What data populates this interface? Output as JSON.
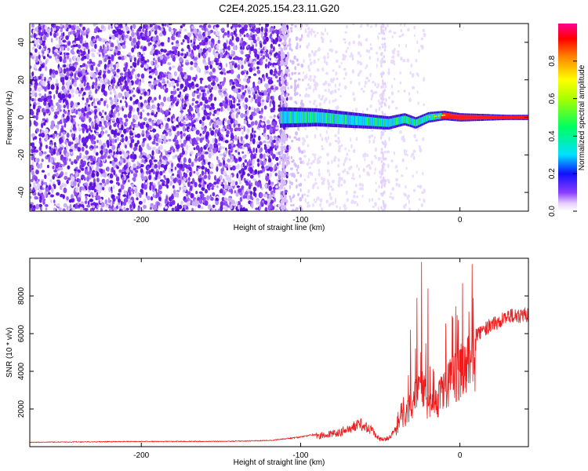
{
  "title": "C2E4.2025.154.23.11.G20",
  "colors": {
    "snr_line": "#ee1c1c",
    "spectrogram_noise": "#6a1aea",
    "background": "#ffffff"
  },
  "chart_data": [
    {
      "type": "heatmap",
      "name": "spectrogram",
      "xlabel": "Height of straight line (km)",
      "ylabel": "Frequency (Hz)",
      "xlim": [
        -270,
        43
      ],
      "ylim": [
        -50,
        50
      ],
      "x_ticks": [
        -200,
        -100,
        0
      ],
      "y_ticks": [
        -40,
        -20,
        0,
        20,
        40
      ],
      "colorbar": {
        "label": "Normalized spectral amplitude",
        "range": [
          0.0,
          1.0
        ],
        "ticks": [
          0.0,
          0.2,
          0.4,
          0.6,
          0.8
        ]
      },
      "signal_band": {
        "description": "strong narrow band near 0 Hz",
        "start_x": -113,
        "end_x": 43,
        "center_freq": [
          {
            "x": -113,
            "f": 0
          },
          {
            "x": -90,
            "f": 0
          },
          {
            "x": -60,
            "f": -2
          },
          {
            "x": -45,
            "f": -3
          },
          {
            "x": -35,
            "f": -1
          },
          {
            "x": -28,
            "f": -3
          },
          {
            "x": -20,
            "f": 0
          },
          {
            "x": -10,
            "f": 1
          },
          {
            "x": 0,
            "f": 0
          },
          {
            "x": 43,
            "f": 0
          }
        ]
      }
    },
    {
      "type": "line",
      "name": "snr",
      "xlabel": "Height of straight line (km)",
      "ylabel": "SNR (10 * v/v)",
      "xlim": [
        -270,
        43
      ],
      "ylim": [
        0,
        10000
      ],
      "x_ticks": [
        -200,
        -100,
        0
      ],
      "y_ticks": [
        2000,
        4000,
        6000,
        8000
      ],
      "series": [
        {
          "values_envelope": [
            {
              "x": -270,
              "y": 250
            },
            {
              "x": -200,
              "y": 300
            },
            {
              "x": -150,
              "y": 300
            },
            {
              "x": -120,
              "y": 350
            },
            {
              "x": -100,
              "y": 550
            },
            {
              "x": -85,
              "y": 800
            },
            {
              "x": -75,
              "y": 1000
            },
            {
              "x": -68,
              "y": 1300
            },
            {
              "x": -62,
              "y": 1500
            },
            {
              "x": -55,
              "y": 1100
            },
            {
              "x": -50,
              "y": 500
            },
            {
              "x": -45,
              "y": 600
            },
            {
              "x": -40,
              "y": 1200
            },
            {
              "x": -35,
              "y": 2200
            },
            {
              "x": -30,
              "y": 3300
            },
            {
              "x": -25,
              "y": 4000
            },
            {
              "x": -22,
              "y": 4300
            },
            {
              "x": -20,
              "y": 2800
            },
            {
              "x": -15,
              "y": 3200
            },
            {
              "x": -10,
              "y": 4200
            },
            {
              "x": -5,
              "y": 4800
            },
            {
              "x": 0,
              "y": 5500
            },
            {
              "x": 10,
              "y": 6300
            },
            {
              "x": 20,
              "y": 6900
            },
            {
              "x": 30,
              "y": 7300
            },
            {
              "x": 43,
              "y": 7500
            }
          ],
          "spikes": [
            {
              "x": -24,
              "y": 9800
            },
            {
              "x": -20,
              "y": 8400
            },
            {
              "x": -31,
              "y": 6200
            },
            {
              "x": -27,
              "y": 7900
            }
          ]
        }
      ]
    }
  ]
}
